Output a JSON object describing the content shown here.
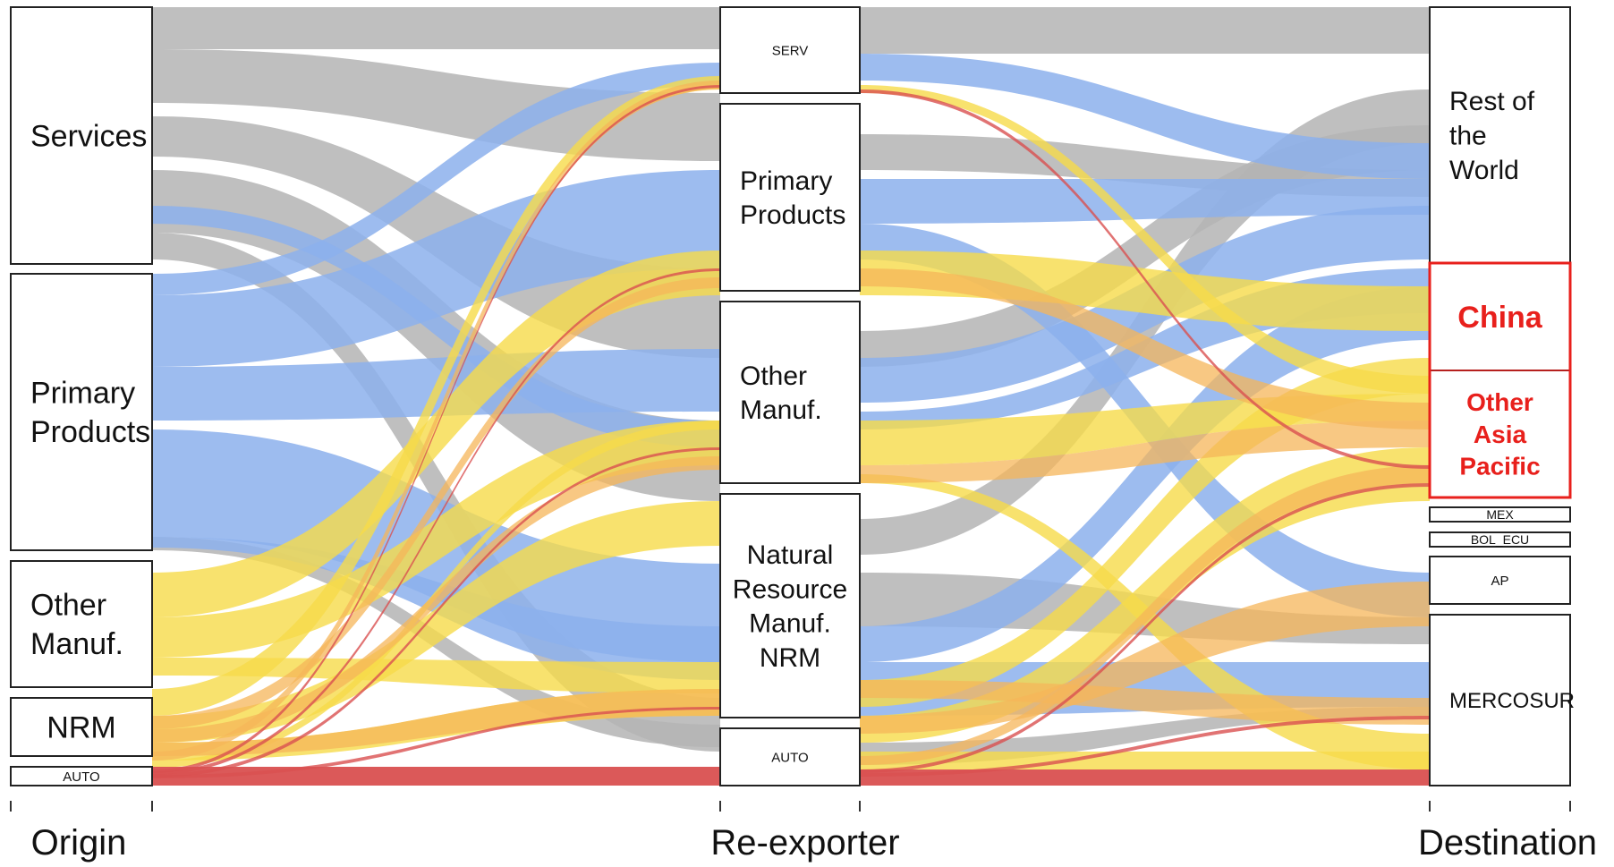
{
  "colors": {
    "grey": "#b4b4b4",
    "blue": "#8cb0ec",
    "yellow": "#f6db4a",
    "orange": "#f5b55a",
    "red": "#d95050",
    "highlight": "#e8201c"
  },
  "axes": {
    "origin": "Origin",
    "reexporter": "Re-exporter",
    "destination": "Destination"
  },
  "origin_nodes": [
    {
      "id": "o-services",
      "lines": [
        "Services"
      ]
    },
    {
      "id": "o-primary",
      "lines": [
        "Primary",
        "Products"
      ]
    },
    {
      "id": "o-other",
      "lines": [
        "Other",
        "Manuf."
      ]
    },
    {
      "id": "o-nrm",
      "lines": [
        "NRM"
      ]
    },
    {
      "id": "o-auto",
      "lines": [
        "AUTO"
      ]
    }
  ],
  "reexporter_nodes": [
    {
      "id": "r-serv",
      "lines": [
        "SERV"
      ]
    },
    {
      "id": "r-primary",
      "lines": [
        "Primary",
        "Products"
      ]
    },
    {
      "id": "r-other",
      "lines": [
        "Other",
        "Manuf."
      ]
    },
    {
      "id": "r-nrm",
      "lines": [
        "Natural",
        "Resource",
        "Manuf.",
        "NRM"
      ]
    },
    {
      "id": "r-auto",
      "lines": [
        "AUTO"
      ]
    }
  ],
  "destination_nodes": [
    {
      "id": "d-row",
      "lines": [
        "Rest of",
        "the",
        "World"
      ]
    },
    {
      "id": "d-china",
      "lines": [
        "China"
      ],
      "highlight": true
    },
    {
      "id": "d-oap",
      "lines": [
        "Other",
        "Asia",
        "Pacific"
      ],
      "highlight": true
    },
    {
      "id": "d-mex",
      "lines": [
        "MEX"
      ]
    },
    {
      "id": "d-bol",
      "lines": [
        "BOL_ECU"
      ]
    },
    {
      "id": "d-ap",
      "lines": [
        "AP"
      ]
    },
    {
      "id": "d-mercosur",
      "lines": [
        "MERCOSUR"
      ]
    }
  ]
}
